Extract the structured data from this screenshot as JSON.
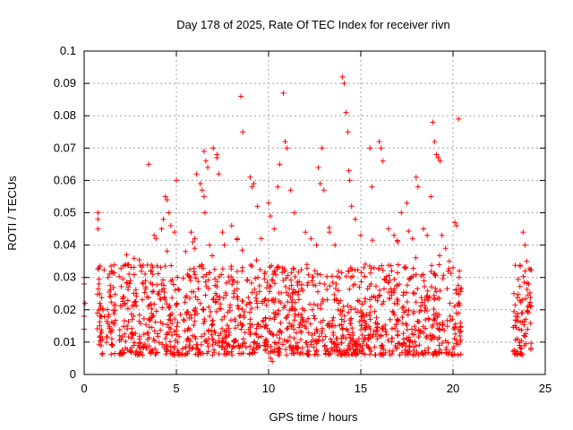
{
  "chart_data": {
    "type": "scatter",
    "title": "Day 178 of 2025, Rate Of TEC Index for receiver rivn",
    "xlabel": "GPS time / hours",
    "ylabel": "ROTI / TECUs",
    "xlim": [
      0,
      25
    ],
    "ylim": [
      0,
      0.1
    ],
    "xticks": [
      "0",
      "5",
      "10",
      "15",
      "20",
      "25"
    ],
    "yticks": [
      "0",
      "0.01",
      "0.02",
      "0.03",
      "0.04",
      "0.05",
      "0.06",
      "0.07",
      "0.08",
      "0.09",
      "0.1"
    ],
    "grid": true,
    "marker": "+",
    "color": "#ff0000",
    "series": [
      {
        "points": [
          [
            0.0,
            0.018
          ],
          [
            0.0,
            0.028
          ],
          [
            0.0,
            0.03
          ],
          [
            0.0,
            0.014
          ],
          [
            0.05,
            0.022
          ],
          [
            0.75,
            0.05
          ],
          [
            0.75,
            0.045
          ],
          [
            0.75,
            0.048
          ],
          [
            0.8,
            0.033
          ],
          [
            0.8,
            0.028
          ],
          [
            0.85,
            0.022
          ],
          [
            0.9,
            0.018
          ],
          [
            0.95,
            0.013
          ],
          [
            1.0,
            0.011
          ],
          [
            1.3,
            0.03
          ],
          [
            1.4,
            0.024
          ],
          [
            1.45,
            0.013
          ],
          [
            1.5,
            0.011
          ],
          [
            1.55,
            0.009
          ],
          [
            1.6,
            0.016
          ],
          [
            2.1,
            0.024
          ],
          [
            2.2,
            0.022
          ],
          [
            2.3,
            0.037
          ],
          [
            2.4,
            0.034
          ],
          [
            2.5,
            0.029
          ],
          [
            2.6,
            0.017
          ],
          [
            2.7,
            0.009
          ],
          [
            2.9,
            0.006
          ],
          [
            3.0,
            0.011
          ],
          [
            3.2,
            0.028
          ],
          [
            3.4,
            0.024
          ],
          [
            3.5,
            0.065
          ],
          [
            3.6,
            0.032
          ],
          [
            3.7,
            0.018
          ],
          [
            3.8,
            0.043
          ],
          [
            3.9,
            0.042
          ],
          [
            4.2,
            0.045
          ],
          [
            4.3,
            0.048
          ],
          [
            4.4,
            0.055
          ],
          [
            4.5,
            0.054
          ],
          [
            4.6,
            0.05
          ],
          [
            4.7,
            0.046
          ],
          [
            4.9,
            0.044
          ],
          [
            4.9,
            0.006
          ],
          [
            5.0,
            0.06
          ],
          [
            5.1,
            0.006
          ],
          [
            5.3,
            0.006
          ],
          [
            5.5,
            0.038
          ],
          [
            5.6,
            0.031
          ],
          [
            5.8,
            0.044
          ],
          [
            5.9,
            0.041
          ],
          [
            6.0,
            0.039
          ],
          [
            6.0,
            0.042
          ],
          [
            6.1,
            0.062
          ],
          [
            6.3,
            0.059
          ],
          [
            6.4,
            0.057
          ],
          [
            6.5,
            0.069
          ],
          [
            6.5,
            0.055
          ],
          [
            6.55,
            0.05
          ],
          [
            6.6,
            0.066
          ],
          [
            6.7,
            0.064
          ],
          [
            6.8,
            0.04
          ],
          [
            7.0,
            0.07
          ],
          [
            7.2,
            0.068
          ],
          [
            7.2,
            0.067
          ],
          [
            7.3,
            0.062
          ],
          [
            7.5,
            0.044
          ],
          [
            7.6,
            0.04
          ],
          [
            8.0,
            0.046
          ],
          [
            8.3,
            0.042
          ],
          [
            8.5,
            0.086
          ],
          [
            8.6,
            0.075
          ],
          [
            9.0,
            0.061
          ],
          [
            9.1,
            0.058
          ],
          [
            9.2,
            0.059
          ],
          [
            9.4,
            0.052
          ],
          [
            9.6,
            0.042
          ],
          [
            10.0,
            0.053
          ],
          [
            10.1,
            0.049
          ],
          [
            10.3,
            0.045
          ],
          [
            10.5,
            0.058
          ],
          [
            10.6,
            0.065
          ],
          [
            10.8,
            0.087
          ],
          [
            10.9,
            0.072
          ],
          [
            11.0,
            0.07
          ],
          [
            11.2,
            0.057
          ],
          [
            11.4,
            0.05
          ],
          [
            10.2,
            0.004
          ],
          [
            10.1,
            0.005
          ],
          [
            12.0,
            0.044
          ],
          [
            12.3,
            0.042
          ],
          [
            12.6,
            0.04
          ],
          [
            12.7,
            0.064
          ],
          [
            12.8,
            0.059
          ],
          [
            12.9,
            0.07
          ],
          [
            13.0,
            0.057
          ],
          [
            13.3,
            0.044
          ],
          [
            13.6,
            0.04
          ],
          [
            14.0,
            0.092
          ],
          [
            14.1,
            0.09
          ],
          [
            14.2,
            0.081
          ],
          [
            14.3,
            0.075
          ],
          [
            14.35,
            0.063
          ],
          [
            14.4,
            0.06
          ],
          [
            14.5,
            0.052
          ],
          [
            14.7,
            0.048
          ],
          [
            15.0,
            0.043
          ],
          [
            15.5,
            0.07
          ],
          [
            15.6,
            0.058
          ],
          [
            16.0,
            0.072
          ],
          [
            16.1,
            0.07
          ],
          [
            16.2,
            0.066
          ],
          [
            16.5,
            0.045
          ],
          [
            16.8,
            0.043
          ],
          [
            17.0,
            0.041
          ],
          [
            17.2,
            0.05
          ],
          [
            17.5,
            0.053
          ],
          [
            17.8,
            0.042
          ],
          [
            18.0,
            0.061
          ],
          [
            18.1,
            0.058
          ],
          [
            18.4,
            0.045
          ],
          [
            18.6,
            0.043
          ],
          [
            18.8,
            0.055
          ],
          [
            18.9,
            0.078
          ],
          [
            19.0,
            0.072
          ],
          [
            19.1,
            0.068
          ],
          [
            19.2,
            0.067
          ],
          [
            19.3,
            0.066
          ],
          [
            19.4,
            0.043
          ],
          [
            19.6,
            0.039
          ],
          [
            19.8,
            0.035
          ],
          [
            20.0,
            0.033
          ],
          [
            20.1,
            0.047
          ],
          [
            20.2,
            0.046
          ],
          [
            20.3,
            0.079
          ],
          [
            20.3,
            0.022
          ],
          [
            20.4,
            0.016
          ],
          [
            23.3,
            0.025
          ],
          [
            23.4,
            0.018
          ],
          [
            23.5,
            0.011
          ],
          [
            23.6,
            0.009
          ],
          [
            23.7,
            0.008
          ],
          [
            23.8,
            0.044
          ],
          [
            23.9,
            0.04
          ],
          [
            24.0,
            0.035
          ],
          [
            24.1,
            0.028
          ],
          [
            24.2,
            0.021
          ]
        ]
      }
    ]
  }
}
